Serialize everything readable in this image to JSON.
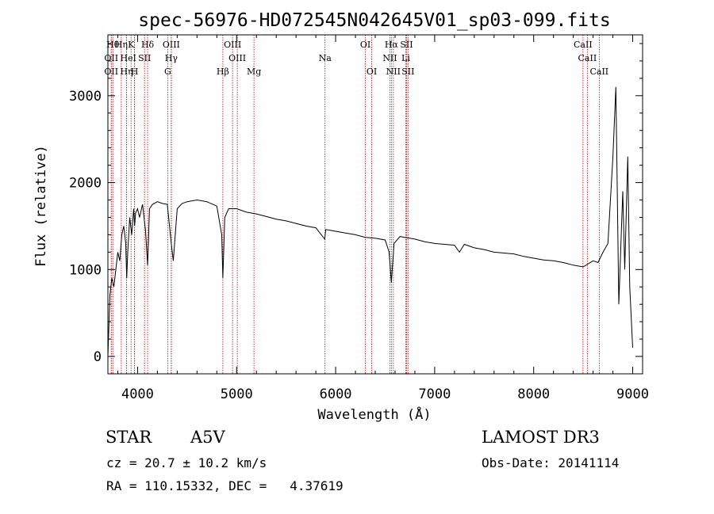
{
  "chart_data": {
    "type": "line",
    "title": "spec-56976-HD072545N042645V01_sp03-099.fits",
    "xlabel": "Wavelength (Å)",
    "ylabel": "Flux (relative)",
    "xlim": [
      3700,
      9100
    ],
    "ylim": [
      -200,
      3700
    ],
    "xticks": [
      4000,
      5000,
      6000,
      7000,
      8000,
      9000
    ],
    "yticks": [
      0,
      1000,
      2000,
      3000
    ],
    "grid": false,
    "legend": "none",
    "series": [
      {
        "x": [
          3700,
          3720,
          3740,
          3760,
          3780,
          3800,
          3820,
          3840,
          3860,
          3880,
          3890,
          3900,
          3920,
          3940,
          3960,
          3970,
          3980,
          4000,
          4020,
          4050,
          4080,
          4101,
          4120,
          4150,
          4200,
          4250,
          4300,
          4340,
          4360,
          4400,
          4450,
          4500,
          4600,
          4700,
          4800,
          4850,
          4861,
          4880,
          4920,
          5000,
          5100,
          5200,
          5300,
          5400,
          5500,
          5600,
          5700,
          5800,
          5890,
          5900,
          5950,
          6000,
          6100,
          6200,
          6300,
          6400,
          6500,
          6540,
          6563,
          6590,
          6650,
          6700,
          6800,
          6900,
          7000,
          7100,
          7200,
          7250,
          7300,
          7400,
          7500,
          7600,
          7700,
          7800,
          7900,
          8000,
          8100,
          8200,
          8300,
          8400,
          8500,
          8600,
          8650,
          8700,
          8750,
          8800,
          8830,
          8860,
          8900,
          8920,
          8950,
          8970,
          9000
        ],
        "y": [
          0,
          700,
          900,
          800,
          1000,
          1200,
          1100,
          1400,
          1500,
          1300,
          900,
          1200,
          1600,
          1400,
          1700,
          1500,
          1650,
          1700,
          1600,
          1750,
          1450,
          1050,
          1700,
          1750,
          1780,
          1760,
          1750,
          1300,
          1100,
          1700,
          1760,
          1780,
          1800,
          1780,
          1730,
          1400,
          900,
          1600,
          1700,
          1700,
          1660,
          1640,
          1610,
          1580,
          1560,
          1530,
          1500,
          1480,
          1350,
          1460,
          1450,
          1440,
          1420,
          1400,
          1370,
          1360,
          1340,
          1200,
          850,
          1300,
          1380,
          1370,
          1350,
          1320,
          1300,
          1290,
          1280,
          1200,
          1290,
          1250,
          1230,
          1200,
          1190,
          1180,
          1150,
          1130,
          1110,
          1100,
          1080,
          1050,
          1030,
          1100,
          1080,
          1200,
          1300,
          2300,
          3100,
          600,
          1900,
          1000,
          2300,
          800,
          100
        ]
      }
    ],
    "annotations": [
      {
        "wl": 3750,
        "row": 1,
        "label": "Hθ"
      },
      {
        "wl": 3734,
        "row": 2,
        "label": "OII"
      },
      {
        "wl": 3734,
        "row": 3,
        "label": "OII"
      },
      {
        "wl": 3835,
        "row": 1,
        "label": "Hη"
      },
      {
        "wl": 3889,
        "row": 2,
        "label": "He"
      },
      {
        "wl": 3889,
        "row": 3,
        "label": "Hη"
      },
      {
        "wl": 3934,
        "row": 1,
        "label": "K"
      },
      {
        "wl": 3970,
        "row": 2,
        "label": "I"
      },
      {
        "wl": 3969,
        "row": 3,
        "label": "H"
      },
      {
        "wl": 4101,
        "row": 1,
        "label": "Hδ"
      },
      {
        "wl": 4070,
        "row": 2,
        "label": "SII"
      },
      {
        "wl": 4340,
        "row": 1,
        "label": "OIII"
      },
      {
        "wl": 4340,
        "row": 2,
        "label": "Hγ"
      },
      {
        "wl": 4304,
        "row": 3,
        "label": "G"
      },
      {
        "wl": 4861,
        "row": 3,
        "label": "Hβ"
      },
      {
        "wl": 4959,
        "row": 1,
        "label": "OIII"
      },
      {
        "wl": 5007,
        "row": 2,
        "label": "OIII"
      },
      {
        "wl": 5175,
        "row": 3,
        "label": "Mg"
      },
      {
        "wl": 5893,
        "row": 2,
        "label": "Na"
      },
      {
        "wl": 6300,
        "row": 1,
        "label": "OI"
      },
      {
        "wl": 6364,
        "row": 3,
        "label": "OI"
      },
      {
        "wl": 6563,
        "row": 1,
        "label": "Hα"
      },
      {
        "wl": 6548,
        "row": 2,
        "label": "NII"
      },
      {
        "wl": 6583,
        "row": 3,
        "label": "NII"
      },
      {
        "wl": 6716,
        "row": 1,
        "label": "SII"
      },
      {
        "wl": 6708,
        "row": 2,
        "label": "Li"
      },
      {
        "wl": 6731,
        "row": 3,
        "label": "SII"
      },
      {
        "wl": 8498,
        "row": 1,
        "label": "CaII"
      },
      {
        "wl": 8542,
        "row": 2,
        "label": "CaII"
      },
      {
        "wl": 8662,
        "row": 3,
        "label": "CaII"
      }
    ]
  },
  "info": {
    "class": "STAR",
    "subclass": "A5V",
    "survey": "LAMOST DR3",
    "cz": "cz = 20.7 ± 10.2 km/s",
    "obs_date": "Obs-Date: 20141114",
    "radec": "RA = 110.15332, DEC =   4.37619"
  },
  "colors": {
    "spectrum": "#000000",
    "line_markers": "#cc0000"
  }
}
